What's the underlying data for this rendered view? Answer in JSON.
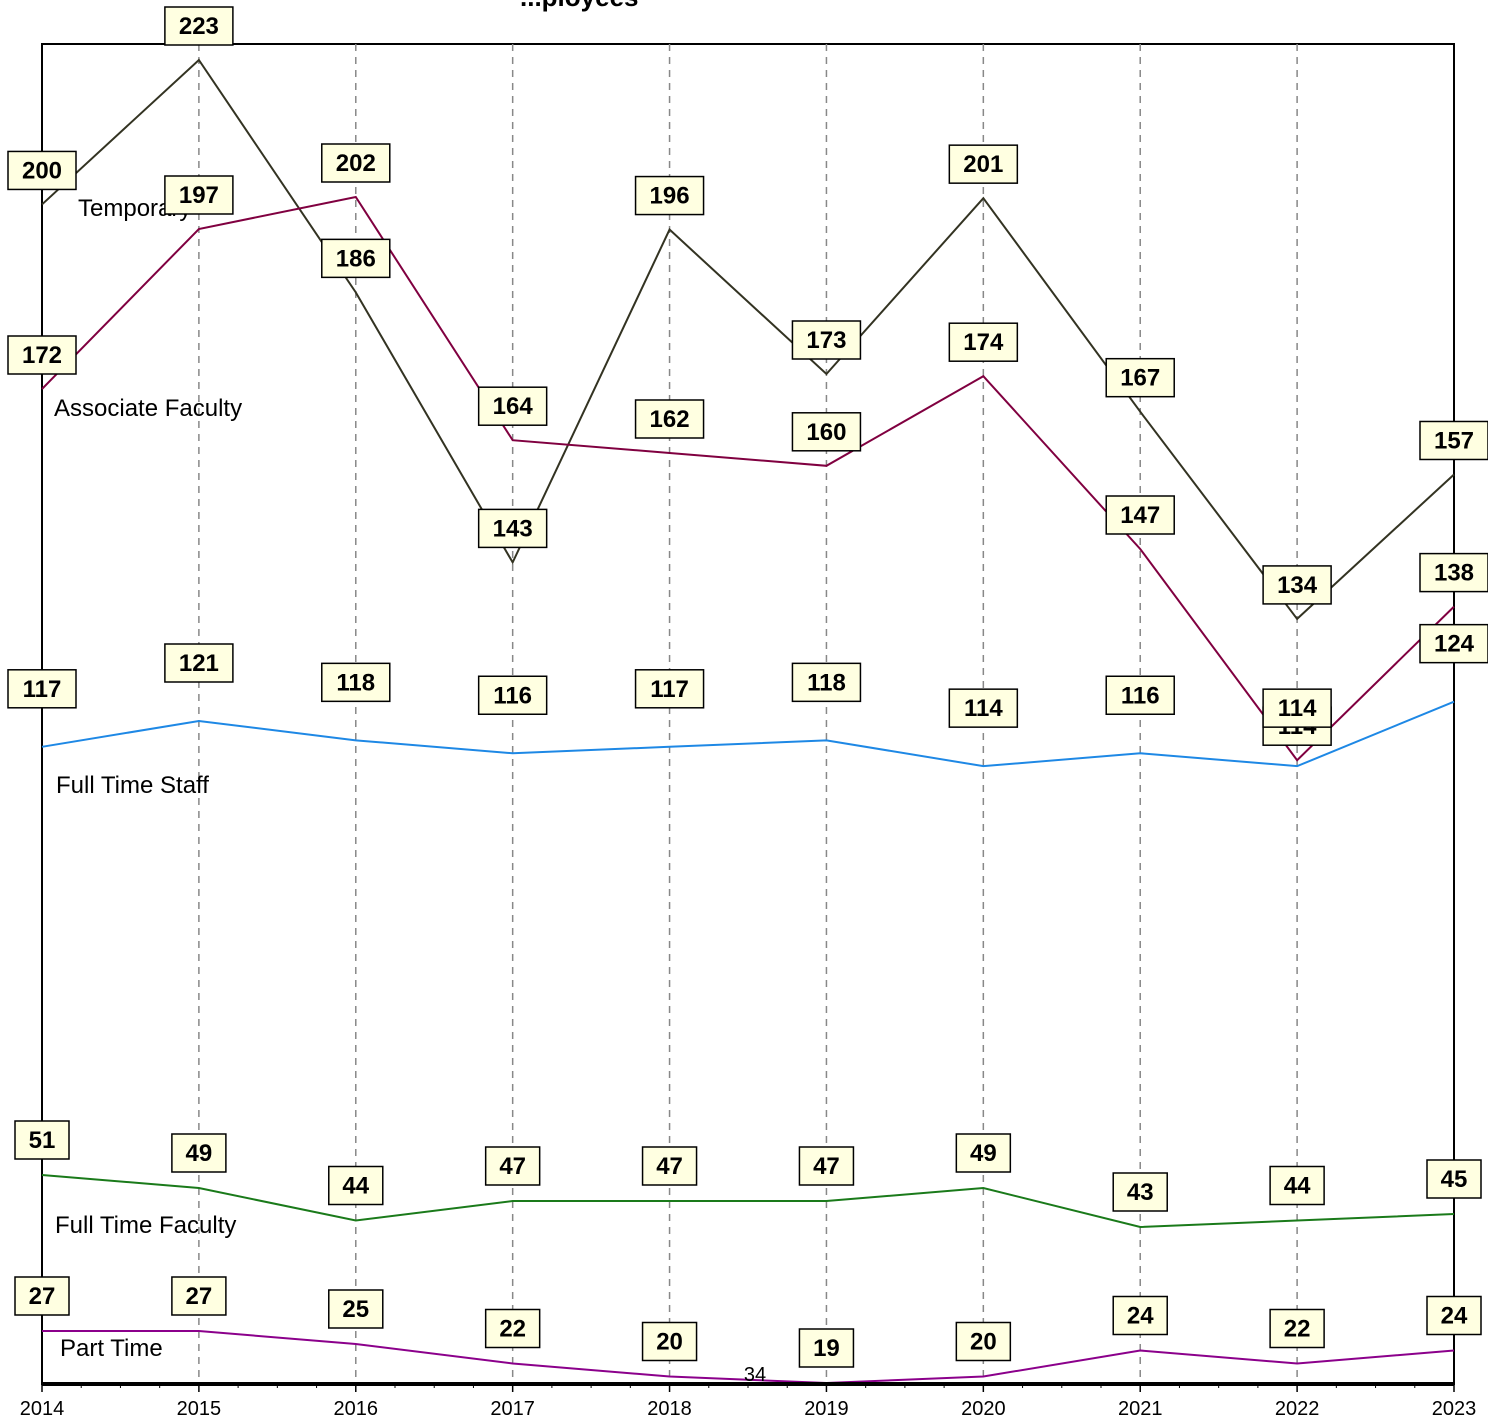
{
  "chart_data": {
    "type": "line",
    "title": "...ployees",
    "x": [
      "2014",
      "2015",
      "2016",
      "2017",
      "2018",
      "2019",
      "2020",
      "2021",
      "2022",
      "2023"
    ],
    "xlabel": "",
    "ylabel": "",
    "grid": {
      "vertical_dashed": true,
      "horizontal": false
    },
    "legend": "inline labels near left edge",
    "annotation": "34",
    "series": [
      {
        "name": "Temporary",
        "color": "#333322",
        "values": [
          200,
          223,
          186,
          143,
          196,
          173,
          201,
          167,
          134,
          157
        ]
      },
      {
        "name": "Associate Faculty",
        "color": "#800040",
        "values": [
          172,
          197,
          202,
          164,
          162,
          160,
          174,
          147,
          114,
          138
        ]
      },
      {
        "name": "Full Time Staff",
        "color": "#1e88e5",
        "values": [
          117,
          121,
          118,
          116,
          117,
          118,
          114,
          116,
          114,
          124
        ]
      },
      {
        "name": "Full Time Faculty",
        "color": "#1a7a1a",
        "values": [
          51,
          49,
          44,
          47,
          47,
          47,
          49,
          43,
          44,
          45
        ]
      },
      {
        "name": "Part Time",
        "color": "#8b008b",
        "values": [
          27,
          27,
          25,
          22,
          20,
          19,
          20,
          24,
          22,
          24
        ]
      }
    ]
  }
}
